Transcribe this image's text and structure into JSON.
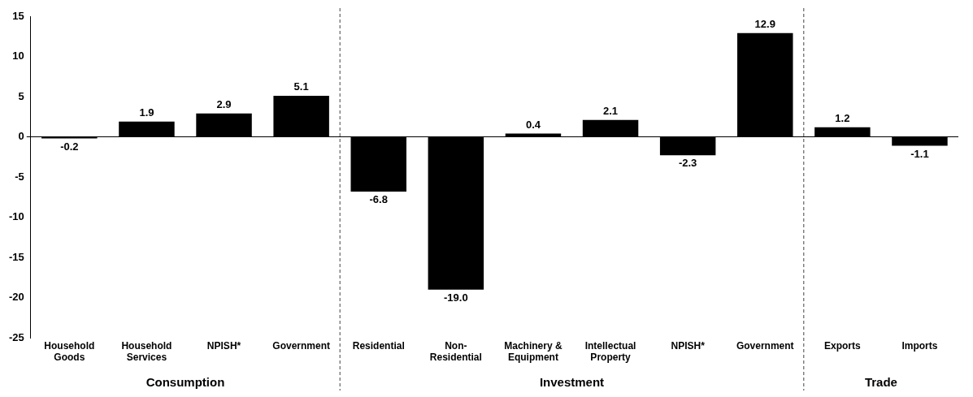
{
  "chart_data": {
    "type": "bar",
    "categories": [
      "Household Goods",
      "Household Services",
      "NPISH*",
      "Government",
      "Residential",
      "Non-Residential",
      "Machinery & Equipment",
      "Intellectual Property",
      "NPISH*",
      "Government",
      "Exports",
      "Imports"
    ],
    "values": [
      -0.2,
      1.9,
      2.9,
      5.1,
      -6.8,
      -19.0,
      0.4,
      2.1,
      -2.3,
      12.9,
      1.2,
      -1.1
    ],
    "color": "#000000",
    "ylim": [
      -25,
      15
    ],
    "yticks": [
      -25,
      -20,
      -15,
      -10,
      -5,
      0,
      5,
      10,
      15
    ],
    "grid": false,
    "legend": false,
    "value_labels": [
      "-0.2",
      "1.9",
      "2.9",
      "5.1",
      "-6.8",
      "-19.0",
      "0.4",
      "2.1",
      "-2.3",
      "12.9",
      "1.2",
      "-1.1"
    ],
    "annotations": [
      "Consumption",
      "Investment",
      "Trade"
    ]
  }
}
